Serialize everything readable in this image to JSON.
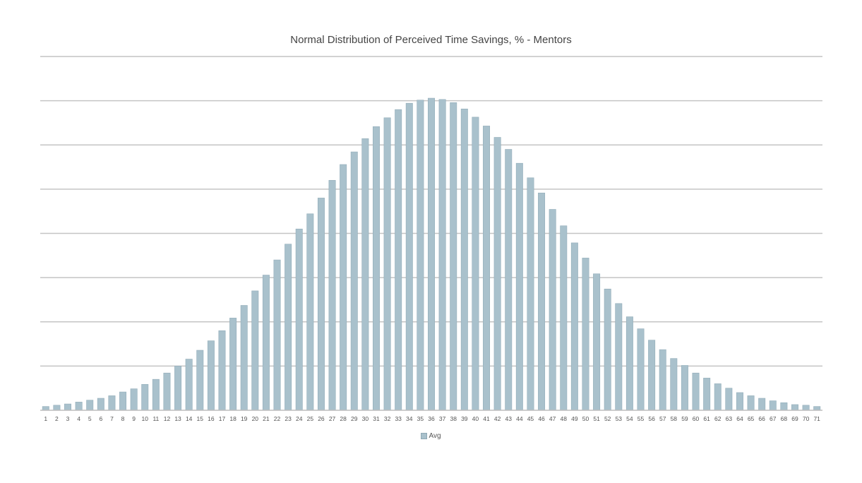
{
  "chart_data": {
    "type": "bar",
    "title": "Normal Distribution of Perceived Time Savings, % - Mentors",
    "xlabel": "",
    "ylabel": "",
    "categories": [
      "1",
      "2",
      "3",
      "4",
      "5",
      "6",
      "7",
      "8",
      "9",
      "10",
      "11",
      "12",
      "13",
      "14",
      "15",
      "16",
      "17",
      "18",
      "19",
      "20",
      "21",
      "22",
      "23",
      "24",
      "25",
      "26",
      "27",
      "28",
      "29",
      "30",
      "31",
      "32",
      "33",
      "34",
      "35",
      "36",
      "37",
      "38",
      "39",
      "40",
      "41",
      "42",
      "43",
      "44",
      "45",
      "46",
      "47",
      "48",
      "49",
      "50",
      "51",
      "52",
      "53",
      "54",
      "55",
      "56",
      "57",
      "58",
      "59",
      "60",
      "61",
      "62",
      "63",
      "64",
      "65",
      "66",
      "67",
      "68",
      "69",
      "70",
      "71"
    ],
    "series": [
      {
        "name": "Avg",
        "color": "#a9c1cc",
        "values": [
          0.6,
          0.8,
          1.0,
          1.3,
          1.6,
          1.9,
          2.3,
          2.9,
          3.4,
          4.1,
          4.9,
          5.9,
          7.0,
          8.1,
          9.5,
          11.0,
          12.6,
          14.6,
          16.6,
          18.9,
          21.4,
          23.8,
          26.3,
          28.7,
          31.1,
          33.6,
          36.4,
          38.9,
          40.9,
          43.0,
          44.9,
          46.3,
          47.6,
          48.6,
          49.1,
          49.4,
          49.2,
          48.7,
          47.7,
          46.4,
          45.0,
          43.2,
          41.3,
          39.1,
          36.8,
          34.4,
          31.8,
          29.2,
          26.5,
          24.1,
          21.6,
          19.2,
          16.9,
          14.8,
          12.9,
          11.1,
          9.6,
          8.2,
          7.1,
          5.9,
          5.1,
          4.2,
          3.5,
          2.8,
          2.3,
          1.9,
          1.5,
          1.2,
          0.9,
          0.8,
          0.6
        ]
      }
    ],
    "ylim": [
      0,
      56
    ],
    "gridlines": 8,
    "grid": true,
    "legend_position": "bottom"
  }
}
